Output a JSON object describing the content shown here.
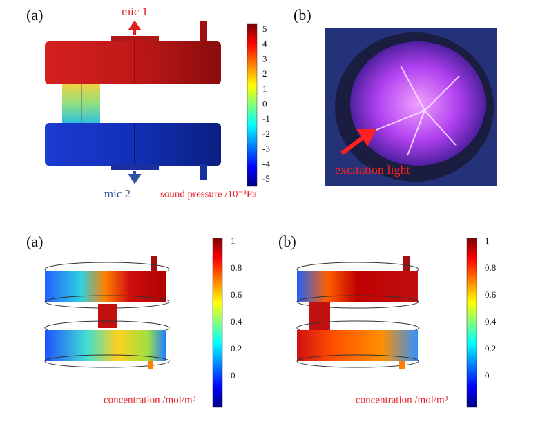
{
  "figure_top": {
    "panel_a": {
      "label": "(a)",
      "mic1": "mic 1",
      "mic2": "mic 2",
      "colorbar": {
        "ticks": [
          5,
          4,
          3,
          2,
          1,
          0,
          -1,
          -2,
          -3,
          -4,
          -5
        ],
        "title": "sound pressure  /10⁻³Pa"
      }
    },
    "panel_b": {
      "label": "(b)",
      "annotation": "excitation light"
    }
  },
  "figure_bottom": {
    "panel_a": {
      "label": "(a)",
      "colorbar": {
        "ticks": [
          1,
          0.8,
          0.6,
          0.4,
          0.2,
          0
        ],
        "title": "concentration /mol/m³"
      }
    },
    "panel_b": {
      "label": "(b)",
      "colorbar": {
        "ticks": [
          1,
          0.8,
          0.6,
          0.4,
          0.2,
          0
        ],
        "title": "concentration /mol/m³"
      }
    }
  }
}
